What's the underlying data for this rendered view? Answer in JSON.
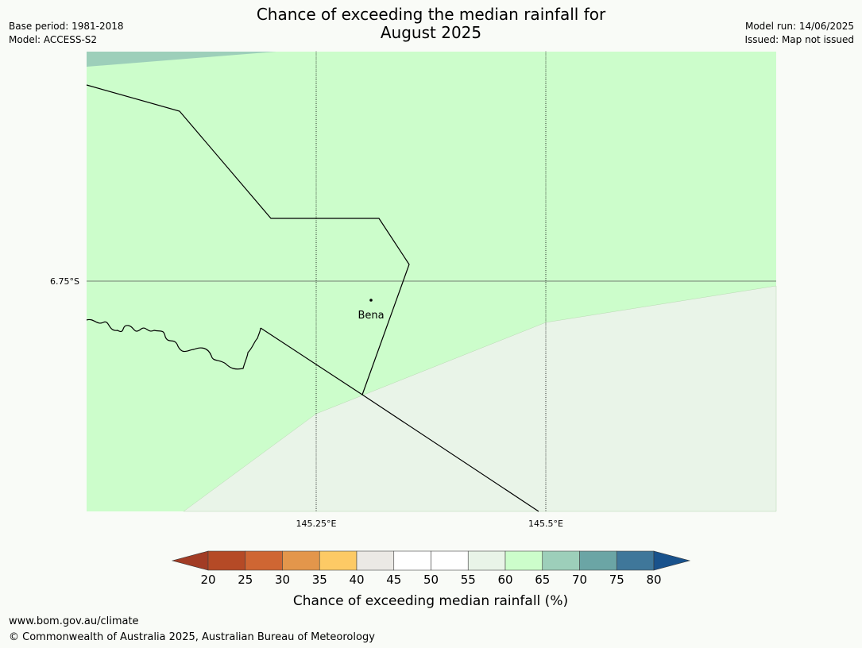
{
  "header": {
    "title_line1": "Chance of exceeding the median rainfall for",
    "title_line2": "August 2025",
    "base_period": "Base period: 1981-2018",
    "model": "Model: ACCESS-S2",
    "model_run": "Model run: 14/06/2025",
    "issued": "Issued: Map not issued"
  },
  "map": {
    "lat_label": "6.75°S",
    "lon_labels": [
      "145.25°E",
      "145.5°E"
    ],
    "place": "Bena",
    "colors": {
      "band_55_60": "#e9f4e8",
      "band_60_65": "#ccfdcb",
      "band_65_70": "#9dcfba"
    }
  },
  "legend": {
    "ticks": [
      "20",
      "25",
      "30",
      "35",
      "40",
      "45",
      "50",
      "55",
      "60",
      "65",
      "70",
      "75",
      "80"
    ],
    "colors": [
      "#a23c25",
      "#b54a26",
      "#cf6633",
      "#e3964b",
      "#fdca65",
      "#ebe9e5",
      "#ffffff",
      "#ffffff",
      "#e9f4e8",
      "#ccfdcb",
      "#9dcfba",
      "#6ba5a5",
      "#3f779a",
      "#19528c"
    ],
    "label": "Chance of exceeding median rainfall (%)"
  },
  "footer": {
    "url": "www.bom.gov.au/climate",
    "copyright": "© Commonwealth of Australia 2025, Australian Bureau of Meteorology"
  }
}
